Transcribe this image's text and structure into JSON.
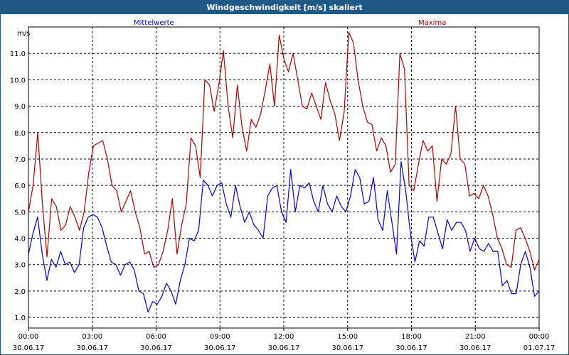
{
  "window": {
    "title": "Windgeschwindigkeit [m/s] skaliert"
  },
  "chart_data": {
    "type": "line",
    "ylabel": "m/s",
    "ylim": [
      0.6,
      12.0
    ],
    "yticks": [
      "1.0",
      "2.0",
      "3.0",
      "4.0",
      "5.0",
      "6.0",
      "7.0",
      "8.0",
      "9.0",
      "10.0",
      "11.0"
    ],
    "xlim": [
      0,
      24
    ],
    "xticks": [
      {
        "time": "00:00",
        "date": "30.06.17"
      },
      {
        "time": "03:00",
        "date": "30.06.17"
      },
      {
        "time": "06:00",
        "date": "30.06.17"
      },
      {
        "time": "09:00",
        "date": "30.06.17"
      },
      {
        "time": "12:00",
        "date": "30.06.17"
      },
      {
        "time": "15:00",
        "date": "30.06.17"
      },
      {
        "time": "18:00",
        "date": "30.06.17"
      },
      {
        "time": "21:00",
        "date": "30.06.17"
      },
      {
        "time": "00:00",
        "date": "01.07.17"
      }
    ],
    "grid": true,
    "series": [
      {
        "name": "Mittelwerte",
        "color": "#0000c8",
        "values": [
          3.4,
          4.2,
          4.8,
          3.4,
          2.4,
          3.2,
          2.9,
          3.5,
          3.0,
          3.1,
          2.7,
          3.0,
          4.4,
          4.8,
          4.9,
          4.8,
          4.4,
          3.7,
          3.1,
          3.0,
          2.6,
          3.0,
          3.1,
          2.8,
          2.0,
          1.9,
          1.2,
          1.6,
          1.5,
          1.8,
          2.3,
          2.0,
          1.5,
          2.4,
          3.0,
          4.0,
          3.9,
          4.3,
          6.2,
          6.0,
          5.6,
          6.0,
          6.1,
          5.3,
          4.8,
          6.0,
          5.2,
          4.6,
          5.0,
          4.5,
          4.3,
          4.0,
          5.6,
          5.9,
          6.0,
          5.0,
          4.6,
          6.6,
          5.0,
          6.0,
          5.9,
          6.1,
          5.4,
          5.0,
          6.0,
          5.3,
          5.0,
          5.6,
          5.2,
          5.0,
          5.6,
          6.6,
          6.3,
          5.3,
          5.4,
          6.3,
          4.7,
          4.3,
          5.8,
          4.6,
          3.4,
          6.9,
          5.8,
          4.2,
          3.1,
          3.9,
          3.7,
          4.8,
          4.8,
          4.2,
          3.6,
          4.7,
          4.3,
          4.6,
          4.6,
          4.3,
          3.5,
          4.0,
          3.6,
          3.5,
          3.8,
          3.5,
          3.5,
          2.2,
          2.4,
          1.9,
          1.9,
          3.0,
          3.5,
          2.9,
          1.8,
          2.0
        ]
      },
      {
        "name": "Maxima",
        "color": "#aa0000",
        "values": [
          5.0,
          6.0,
          8.0,
          5.3,
          3.3,
          5.5,
          5.2,
          4.3,
          4.5,
          5.2,
          4.8,
          4.3,
          5.0,
          6.5,
          7.5,
          7.6,
          7.7,
          7.0,
          6.0,
          5.8,
          5.0,
          5.4,
          5.8,
          5.0,
          4.4,
          3.4,
          3.5,
          2.9,
          3.0,
          3.5,
          4.3,
          5.5,
          3.4,
          4.5,
          5.3,
          7.8,
          7.5,
          6.3,
          10.0,
          9.8,
          8.8,
          9.8,
          11.1,
          9.0,
          7.8,
          9.8,
          8.2,
          7.3,
          8.5,
          8.2,
          8.7,
          9.6,
          10.6,
          9.0,
          11.7,
          10.8,
          10.3,
          11.0,
          10.0,
          9.0,
          8.9,
          9.5,
          9.0,
          8.5,
          9.9,
          9.2,
          8.7,
          7.7,
          8.8,
          11.8,
          11.4,
          10.0,
          9.0,
          8.4,
          8.3,
          7.3,
          7.8,
          7.5,
          6.5,
          6.8,
          11.0,
          10.4,
          6.0,
          5.8,
          6.8,
          7.7,
          7.3,
          7.5,
          5.4,
          7.0,
          6.8,
          7.2,
          9.0,
          7.0,
          6.8,
          5.6,
          5.7,
          5.5,
          6.0,
          5.6,
          4.9,
          4.0,
          3.6,
          3.0,
          2.9,
          4.3,
          4.4,
          4.0,
          3.5,
          2.8,
          3.2
        ]
      }
    ]
  }
}
